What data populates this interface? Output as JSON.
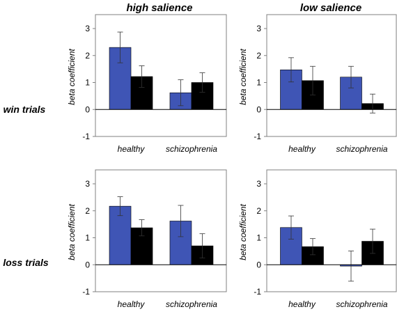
{
  "column_titles": [
    "high salience",
    "low salience"
  ],
  "row_titles": [
    "win trials",
    "loss trials"
  ],
  "colors": {
    "series_a": "#3F55B5",
    "series_b": "#000000",
    "axis": "#808080"
  },
  "chart_data": [
    {
      "type": "bar",
      "title": "",
      "ylabel": "beta coefficient",
      "ylim": [
        -1,
        3
      ],
      "yticks": [
        "-1",
        "0",
        "1",
        "2",
        "3"
      ],
      "categories": [
        "healthy",
        "schizophrenia"
      ],
      "series": [
        {
          "values": [
            2.3,
            0.62
          ],
          "errors": [
            0.57,
            0.48
          ]
        },
        {
          "values": [
            1.22,
            1.0
          ],
          "errors": [
            0.4,
            0.36
          ]
        }
      ]
    },
    {
      "type": "bar",
      "title": "",
      "ylabel": "beta coefficient",
      "ylim": [
        -1,
        3
      ],
      "yticks": [
        "-1",
        "0",
        "1",
        "2",
        "3"
      ],
      "categories": [
        "healthy",
        "schizophrenia"
      ],
      "series": [
        {
          "values": [
            1.47,
            1.2
          ],
          "errors": [
            0.45,
            0.4
          ]
        },
        {
          "values": [
            1.07,
            0.22
          ],
          "errors": [
            0.53,
            0.35
          ]
        }
      ]
    },
    {
      "type": "bar",
      "title": "",
      "ylabel": "beta coefficient",
      "ylim": [
        -1,
        3
      ],
      "yticks": [
        "-1",
        "0",
        "1",
        "2",
        "3"
      ],
      "categories": [
        "healthy",
        "schizophrenia"
      ],
      "series": [
        {
          "values": [
            2.17,
            1.62
          ],
          "errors": [
            0.35,
            0.58
          ]
        },
        {
          "values": [
            1.37,
            0.7
          ],
          "errors": [
            0.3,
            0.45
          ]
        }
      ]
    },
    {
      "type": "bar",
      "title": "",
      "ylabel": "beta coefficient",
      "ylim": [
        -1,
        3
      ],
      "yticks": [
        "-1",
        "0",
        "1",
        "2",
        "3"
      ],
      "categories": [
        "healthy",
        "schizophrenia"
      ],
      "series": [
        {
          "values": [
            1.38,
            -0.05
          ],
          "errors": [
            0.43,
            0.56
          ]
        },
        {
          "values": [
            0.67,
            0.87
          ],
          "errors": [
            0.3,
            0.45
          ]
        }
      ]
    }
  ]
}
